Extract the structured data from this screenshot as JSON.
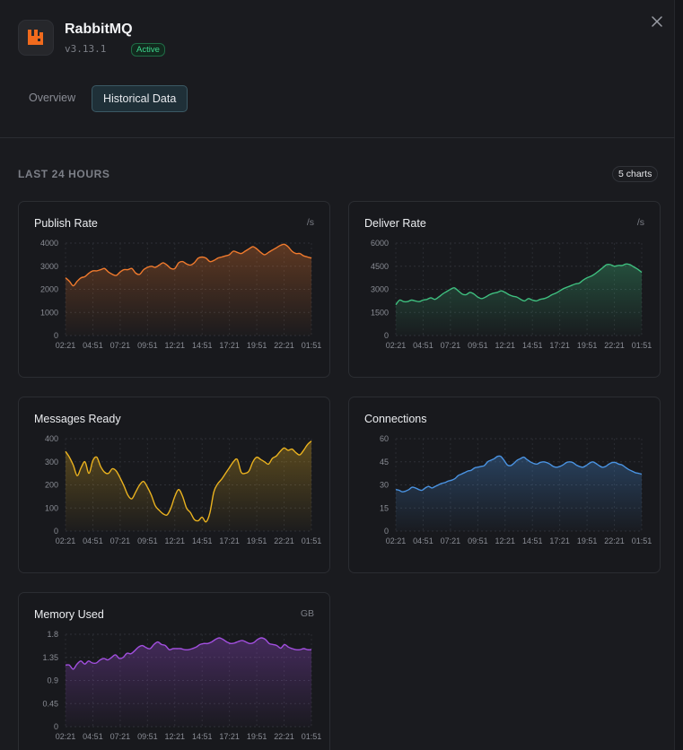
{
  "app": {
    "title": "RabbitMQ",
    "version": "v3.13.1",
    "status": "Active",
    "icon": "rabbitmq-logo",
    "brand_color": "#f06a1d"
  },
  "tabs": [
    {
      "label": "Overview",
      "active": false
    },
    {
      "label": "Historical Data",
      "active": true
    }
  ],
  "section": {
    "title": "LAST 24 HOURS",
    "count_label": "5 charts"
  },
  "close_icon": "close-icon",
  "chart_data": [
    {
      "type": "area",
      "title": "Publish Rate",
      "unit": "/s",
      "color": "#f07a2d",
      "ylim": [
        0,
        4000
      ],
      "yticks": [
        "4000",
        "3000",
        "2000",
        "1000",
        "0"
      ],
      "xticks": [
        "02:21",
        "04:51",
        "07:21",
        "09:51",
        "12:21",
        "14:51",
        "17:21",
        "19:51",
        "22:21",
        "01:51"
      ],
      "grid": true,
      "values": [
        2500,
        2350,
        2150,
        2350,
        2500,
        2550,
        2700,
        2800,
        2800,
        2850,
        2900,
        2750,
        2650,
        2600,
        2750,
        2850,
        2850,
        2900,
        2700,
        2650,
        2850,
        2950,
        3000,
        2950,
        3050,
        3150,
        3050,
        2900,
        2900,
        3150,
        3200,
        3100,
        3050,
        3150,
        3350,
        3400,
        3350,
        3200,
        3250,
        3350,
        3400,
        3450,
        3500,
        3650,
        3600,
        3550,
        3650,
        3750,
        3850,
        3750,
        3600,
        3500,
        3600,
        3700,
        3800,
        3900,
        3950,
        3850,
        3650,
        3550,
        3550,
        3450,
        3400,
        3350
      ]
    },
    {
      "type": "area",
      "title": "Deliver Rate",
      "unit": "/s",
      "color": "#3fbf7f",
      "ylim": [
        0,
        6000
      ],
      "yticks": [
        "6000",
        "4500",
        "3000",
        "1500",
        "0"
      ],
      "xticks": [
        "02:21",
        "04:51",
        "07:21",
        "09:51",
        "12:21",
        "14:51",
        "17:21",
        "19:51",
        "22:21",
        "01:51"
      ],
      "grid": true,
      "values": [
        2000,
        2300,
        2200,
        2200,
        2300,
        2250,
        2200,
        2300,
        2350,
        2450,
        2350,
        2500,
        2700,
        2850,
        3000,
        3100,
        2900,
        2700,
        2650,
        2800,
        2700,
        2500,
        2400,
        2500,
        2650,
        2750,
        2800,
        2900,
        2800,
        2650,
        2550,
        2500,
        2350,
        2250,
        2400,
        2300,
        2250,
        2350,
        2400,
        2500,
        2650,
        2750,
        2900,
        3050,
        3150,
        3250,
        3350,
        3400,
        3600,
        3750,
        3850,
        4000,
        4200,
        4400,
        4600,
        4600,
        4500,
        4550,
        4550,
        4650,
        4600,
        4450,
        4300,
        4100
      ]
    },
    {
      "type": "area",
      "title": "Messages Ready",
      "unit": "",
      "color": "#eab21f",
      "ylim": [
        0,
        400
      ],
      "yticks": [
        "400",
        "300",
        "200",
        "100",
        "0"
      ],
      "xticks": [
        "02:21",
        "04:51",
        "07:21",
        "09:51",
        "12:21",
        "14:51",
        "17:21",
        "19:51",
        "22:21",
        "01:51"
      ],
      "grid": true,
      "values": [
        345,
        320,
        285,
        240,
        275,
        300,
        250,
        305,
        320,
        280,
        255,
        250,
        270,
        260,
        230,
        195,
        155,
        140,
        170,
        200,
        215,
        190,
        155,
        110,
        90,
        75,
        70,
        100,
        150,
        180,
        150,
        100,
        80,
        50,
        45,
        60,
        40,
        80,
        170,
        205,
        225,
        250,
        275,
        300,
        310,
        255,
        250,
        260,
        300,
        320,
        310,
        300,
        290,
        315,
        325,
        345,
        360,
        350,
        355,
        340,
        330,
        350,
        375,
        390
      ]
    },
    {
      "type": "area",
      "title": "Connections",
      "unit": "",
      "color": "#4a93e2",
      "ylim": [
        0,
        60
      ],
      "yticks": [
        "60",
        "45",
        "30",
        "15",
        "0"
      ],
      "xticks": [
        "02:21",
        "04:51",
        "07:21",
        "09:51",
        "12:21",
        "14:51",
        "17:21",
        "19:51",
        "22:21",
        "01:51"
      ],
      "grid": true,
      "values": [
        27,
        26.5,
        25.5,
        26,
        27,
        28.5,
        28,
        27,
        26.5,
        28,
        29,
        28,
        29,
        30,
        31,
        31.5,
        32.5,
        33,
        34,
        36,
        37,
        38,
        39,
        39.5,
        41,
        41.5,
        42,
        42.5,
        45,
        46,
        47,
        48.5,
        48.5,
        46,
        43,
        42.5,
        44,
        46,
        47,
        48,
        46.5,
        45,
        44,
        43.5,
        44.5,
        45,
        44.5,
        43.5,
        42,
        41.5,
        42,
        43,
        44.5,
        45,
        44.5,
        43,
        42,
        41.5,
        42.5,
        44,
        45,
        44,
        42.5,
        41.5,
        42,
        43.5,
        44.5,
        44.5,
        43.5,
        43,
        41.5,
        40,
        39,
        38,
        37.5,
        37
      ]
    },
    {
      "type": "area",
      "title": "Memory Used",
      "unit": "GB",
      "color": "#a24fdf",
      "ylim": [
        0,
        1.8
      ],
      "yticks": [
        "1.8",
        "1.35",
        "0.9",
        "0.45",
        "0"
      ],
      "xticks": [
        "02:21",
        "04:51",
        "07:21",
        "09:51",
        "12:21",
        "14:51",
        "17:21",
        "19:51",
        "22:21",
        "01:51"
      ],
      "grid": true,
      "values": [
        1.2,
        1.2,
        1.12,
        1.22,
        1.28,
        1.22,
        1.28,
        1.24,
        1.24,
        1.3,
        1.33,
        1.3,
        1.35,
        1.4,
        1.33,
        1.35,
        1.43,
        1.42,
        1.48,
        1.55,
        1.58,
        1.54,
        1.52,
        1.6,
        1.65,
        1.6,
        1.58,
        1.5,
        1.52,
        1.52,
        1.52,
        1.5,
        1.5,
        1.52,
        1.55,
        1.6,
        1.62,
        1.62,
        1.65,
        1.7,
        1.73,
        1.7,
        1.65,
        1.62,
        1.63,
        1.66,
        1.68,
        1.65,
        1.62,
        1.64,
        1.7,
        1.73,
        1.7,
        1.62,
        1.6,
        1.58,
        1.53,
        1.6,
        1.55,
        1.52,
        1.5,
        1.5,
        1.52,
        1.5,
        1.5
      ]
    }
  ]
}
